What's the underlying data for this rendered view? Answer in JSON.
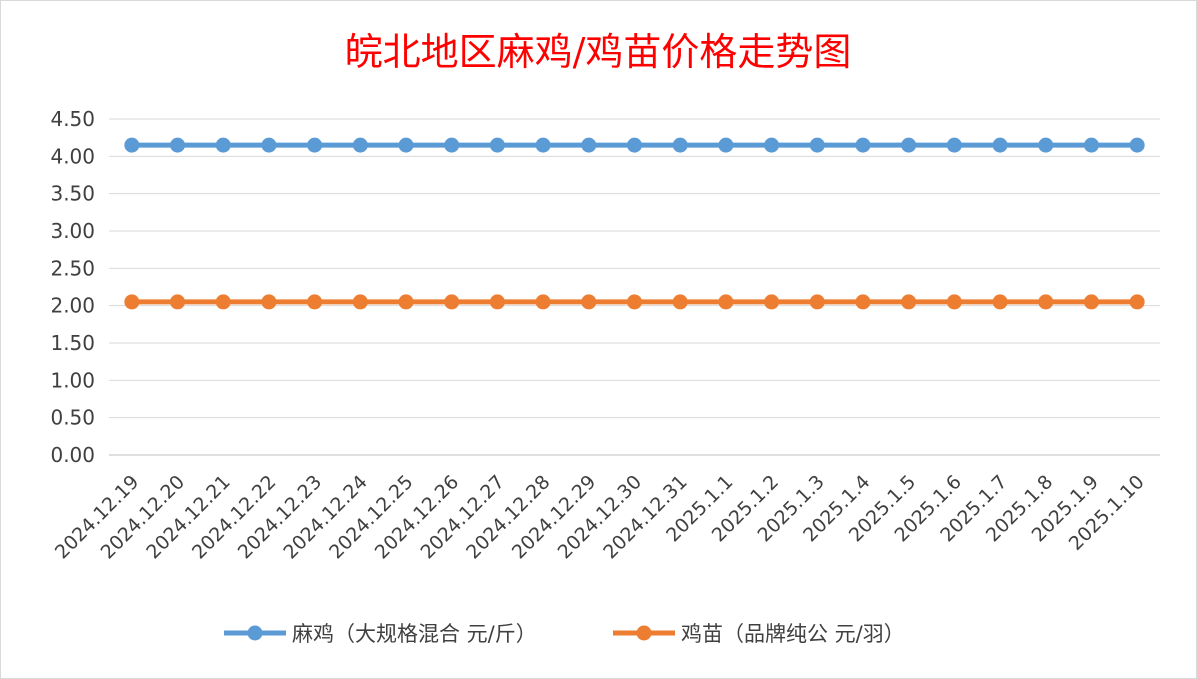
{
  "chart_data": {
    "type": "line",
    "title": "皖北地区麻鸡/鸡苗价格走势图",
    "xlabel": "",
    "ylabel": "",
    "categories": [
      "2024.12.19",
      "2024.12.20",
      "2024.12.21",
      "2024.12.22",
      "2024.12.23",
      "2024.12.24",
      "2024.12.25",
      "2024.12.26",
      "2024.12.27",
      "2024.12.28",
      "2024.12.29",
      "2024.12.30",
      "2024.12.31",
      "2025.1.1",
      "2025.1.2",
      "2025.1.3",
      "2025.1.4",
      "2025.1.5",
      "2025.1.6",
      "2025.1.7",
      "2025.1.8",
      "2025.1.9",
      "2025.1.10"
    ],
    "y_ticks": [
      "0.00",
      "0.50",
      "1.00",
      "1.50",
      "2.00",
      "2.50",
      "3.00",
      "3.50",
      "4.00",
      "4.50"
    ],
    "ylim": [
      0,
      4.5
    ],
    "grid": true,
    "legend_position": "bottom",
    "series": [
      {
        "name": "麻鸡（大规格混合 元/斤）",
        "color": "#5b9bd5",
        "values": [
          4.15,
          4.15,
          4.15,
          4.15,
          4.15,
          4.15,
          4.15,
          4.15,
          4.15,
          4.15,
          4.15,
          4.15,
          4.15,
          4.15,
          4.15,
          4.15,
          4.15,
          4.15,
          4.15,
          4.15,
          4.15,
          4.15,
          4.15
        ]
      },
      {
        "name": "鸡苗（品牌纯公 元/羽）",
        "color": "#ed7d31",
        "values": [
          2.05,
          2.05,
          2.05,
          2.05,
          2.05,
          2.05,
          2.05,
          2.05,
          2.05,
          2.05,
          2.05,
          2.05,
          2.05,
          2.05,
          2.05,
          2.05,
          2.05,
          2.05,
          2.05,
          2.05,
          2.05,
          2.05,
          2.05
        ]
      }
    ]
  }
}
